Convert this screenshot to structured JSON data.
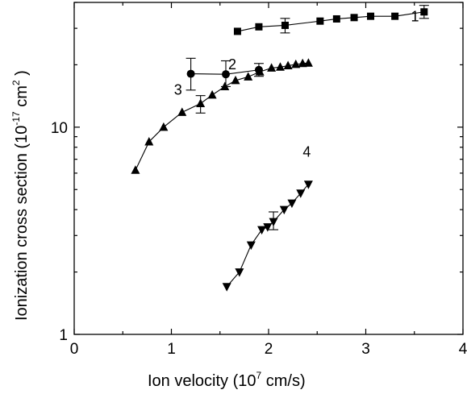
{
  "chart_data": {
    "type": "scatter",
    "xlabel": {
      "pre": "Ion velocity (10",
      "sup": "7",
      "post": " cm/s)"
    },
    "ylabel": {
      "pre": "Ionization cross section (10",
      "sup1": "-17",
      "mid": " cm",
      "sup2": "2",
      "post": " )"
    },
    "xlim": [
      0,
      4
    ],
    "ylim": [
      1,
      40
    ],
    "yscale": "log",
    "x_ticks": [
      0,
      1,
      2,
      3,
      4
    ],
    "x_tick_labels": [
      "0",
      "1",
      "2",
      "3",
      "4"
    ],
    "y_ticks": [
      1,
      10
    ],
    "y_tick_labels": [
      "1",
      "10"
    ],
    "series": [
      {
        "name": "1",
        "marker": "square",
        "x": [
          1.68,
          1.9,
          2.17,
          2.53,
          2.7,
          2.88,
          3.05,
          3.3,
          3.6
        ],
        "y": [
          29,
          30.5,
          31,
          32.5,
          33.3,
          33.8,
          34.3,
          34.3,
          36
        ],
        "errors": [
          {
            "x": 2.17,
            "low": 28.5,
            "high": 33.5
          },
          {
            "x": 3.6,
            "low": 33.5,
            "high": 38.7
          }
        ]
      },
      {
        "name": "2",
        "marker": "circle",
        "x": [
          1.2,
          1.56,
          1.9
        ],
        "y": [
          18.1,
          18.0,
          18.9
        ],
        "errors": [
          {
            "x": 1.2,
            "low": 15.1,
            "high": 21.5
          },
          {
            "x": 1.56,
            "low": 15.7,
            "high": 20.9
          },
          {
            "x": 1.9,
            "low": 17.6,
            "high": 20.3
          }
        ]
      },
      {
        "name": "3",
        "marker": "triangle-up",
        "x": [
          0.63,
          0.77,
          0.92,
          1.11,
          1.3,
          1.42,
          1.55,
          1.66,
          1.79,
          1.91,
          2.03,
          2.12,
          2.2,
          2.28,
          2.35,
          2.41
        ],
        "y": [
          6.2,
          8.5,
          10,
          11.8,
          13,
          14.3,
          15.7,
          16.8,
          17.5,
          18.5,
          19.3,
          19.5,
          19.8,
          20.1,
          20.3,
          20.4
        ],
        "errors": [
          {
            "x": 1.3,
            "low": 11.7,
            "high": 14.2
          }
        ]
      },
      {
        "name": "4",
        "marker": "triangle-down",
        "x": [
          1.57,
          1.7,
          1.82,
          1.93,
          1.99,
          2.05,
          2.16,
          2.24,
          2.33,
          2.41
        ],
        "y": [
          1.7,
          2.0,
          2.7,
          3.2,
          3.3,
          3.5,
          4.0,
          4.3,
          4.8,
          5.3
        ],
        "errors": [
          {
            "x": 2.05,
            "low": 3.2,
            "high": 3.9
          }
        ]
      }
    ]
  }
}
